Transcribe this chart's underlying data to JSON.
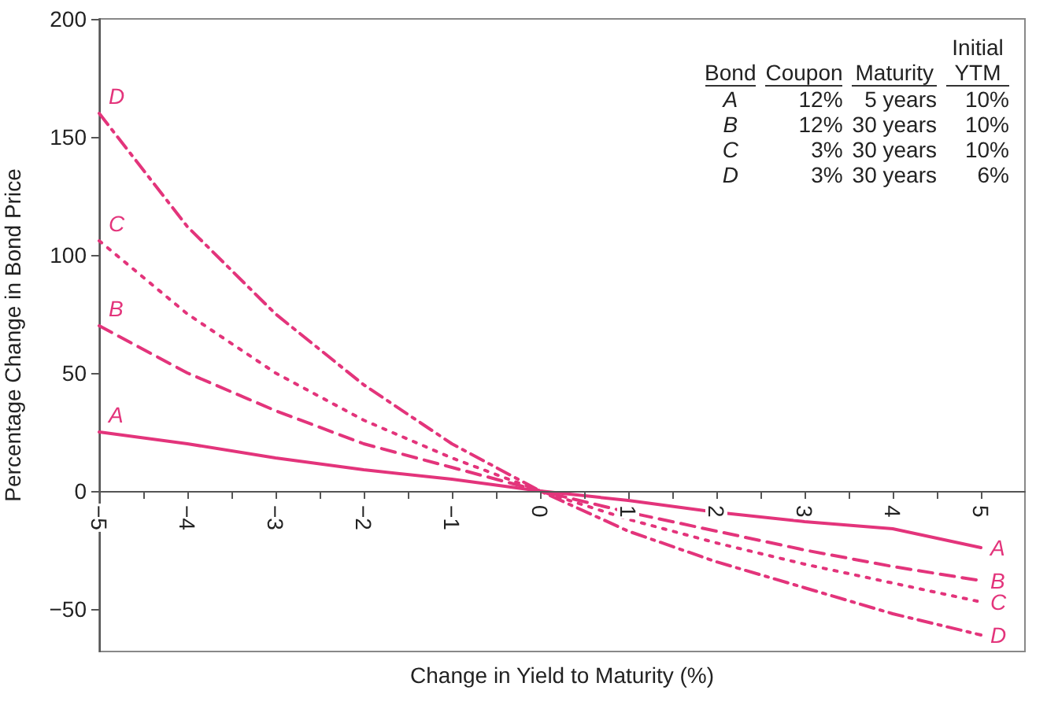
{
  "chart_data": {
    "type": "line",
    "xlabel": "Change in Yield to Maturity (%)",
    "ylabel": "Percentage Change in Bond Price",
    "x": [
      -5,
      -4,
      -3,
      -2,
      -1,
      0,
      1,
      2,
      3,
      4,
      5
    ],
    "series": [
      {
        "name": "A",
        "color": "#e3347b",
        "line_style": "solid",
        "values": [
          25,
          20,
          14,
          9,
          5,
          0,
          -4,
          -9,
          -13,
          -16,
          -24
        ]
      },
      {
        "name": "B",
        "color": "#e3347b",
        "line_style": "dashed",
        "values": [
          70,
          50,
          34,
          20,
          10,
          0,
          -9,
          -17,
          -25,
          -32,
          -38
        ]
      },
      {
        "name": "C",
        "color": "#e3347b",
        "line_style": "dotted",
        "values": [
          106,
          75,
          50,
          30,
          14,
          0,
          -12,
          -22,
          -31,
          -39,
          -47
        ]
      },
      {
        "name": "D",
        "color": "#e3347b",
        "line_style": "dashdot",
        "values": [
          160,
          112,
          75,
          45,
          20,
          0,
          -17,
          -30,
          -41,
          -52,
          -61
        ]
      }
    ],
    "xlim": [
      -5,
      5.5
    ],
    "xticks": [
      -5,
      {
        "value": -4.5,
        "label": null
      },
      -4,
      {
        "value": -3.5,
        "label": null
      },
      -3,
      {
        "value": -2.5,
        "label": null
      },
      -2,
      {
        "value": -1.5,
        "label": null
      },
      -1,
      {
        "value": -0.5,
        "label": null
      },
      0,
      {
        "value": 0.5,
        "label": null
      },
      1,
      {
        "value": 1.5,
        "label": null
      },
      2,
      {
        "value": 2.5,
        "label": null
      },
      3,
      {
        "value": 3.5,
        "label": null
      },
      4,
      {
        "value": 4.5,
        "label": null
      },
      5
    ],
    "ylim": [
      -68,
      200
    ],
    "yticks": [
      -50,
      0,
      50,
      100,
      150,
      200
    ],
    "grid": false,
    "legend": false,
    "marker": "none",
    "annotations": [
      "Bond",
      "Coupon",
      "Maturity",
      "Initial YTM",
      "A",
      "12%",
      "5 years",
      "10%",
      "B",
      "12%",
      "30 years",
      "10%",
      "C",
      "3%",
      "30 years",
      "10%",
      "D",
      "3%",
      "30 years",
      "6%"
    ]
  }
}
